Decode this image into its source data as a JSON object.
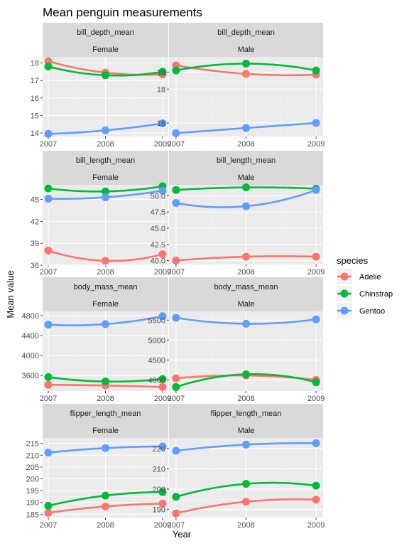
{
  "chart_data": {
    "type": "line",
    "title": "Mean penguin measurements",
    "xlabel": "Year",
    "ylabel": "Mean value",
    "legend": {
      "title": "species",
      "position": "right"
    },
    "series_colors": {
      "Adelie": "#F8766D",
      "Chinstrap": "#00BA38",
      "Gentoo": "#619CFF"
    },
    "series_names": [
      "Adelie",
      "Chinstrap",
      "Gentoo"
    ],
    "x": [
      2007,
      2008,
      2009
    ],
    "grid": true,
    "panels": [
      {
        "strip_top": "bill_depth_mean",
        "strip_bottom": "Female",
        "ylim": [
          13.8,
          18.35
        ],
        "yticks": [
          14,
          15,
          16,
          17,
          18
        ],
        "ytick_labels": [
          "14",
          "15",
          "16",
          "17",
          "18"
        ],
        "series": [
          {
            "name": "Adelie",
            "values": [
              18.1,
              17.45,
              17.35
            ]
          },
          {
            "name": "Chinstrap",
            "values": [
              17.8,
              17.3,
              17.5
            ]
          },
          {
            "name": "Gentoo",
            "values": [
              13.95,
              14.15,
              14.55
            ]
          }
        ]
      },
      {
        "strip_top": "bill_depth_mean",
        "strip_bottom": "Male",
        "ylim": [
          15.2,
          19.9
        ],
        "yticks": [
          16,
          18,
          19
        ],
        "ytick_labels": [
          "16",
          "18",
          "19"
        ],
        "series": [
          {
            "name": "Adelie",
            "values": [
              19.4,
              18.9,
              18.85
            ]
          },
          {
            "name": "Chinstrap",
            "values": [
              19.1,
              19.5,
              19.1
            ]
          },
          {
            "name": "Gentoo",
            "values": [
              15.4,
              15.7,
              16.0
            ]
          }
        ]
      },
      {
        "strip_top": "bill_length_mean",
        "strip_bottom": "Female",
        "ylim": [
          36.1,
          47.0
        ],
        "yticks": [
          36,
          39,
          42,
          45
        ],
        "ytick_labels": [
          "36",
          "39",
          "42",
          "45"
        ],
        "series": [
          {
            "name": "Adelie",
            "values": [
              38.0,
              36.6,
              37.5
            ]
          },
          {
            "name": "Chinstrap",
            "values": [
              46.5,
              46.1,
              46.8
            ]
          },
          {
            "name": "Gentoo",
            "values": [
              45.1,
              45.3,
              46.2
            ]
          }
        ]
      },
      {
        "strip_top": "bill_length_mean",
        "strip_bottom": "Male",
        "ylim": [
          39.4,
          51.7
        ],
        "yticks": [
          40.0,
          42.5,
          45.0,
          47.5,
          50.0
        ],
        "ytick_labels": [
          "40.0",
          "42.5",
          "45.0",
          "47.5",
          "50.0"
        ],
        "series": [
          {
            "name": "Adelie",
            "values": [
              40.0,
              40.6,
              40.6
            ]
          },
          {
            "name": "Chinstrap",
            "values": [
              50.9,
              51.3,
              51.1
            ]
          },
          {
            "name": "Gentoo",
            "values": [
              48.9,
              48.4,
              50.9
            ]
          }
        ]
      },
      {
        "strip_top": "body_mass_mean",
        "strip_bottom": "Female",
        "ylim": [
          3290,
          4885
        ],
        "yticks": [
          3600,
          4000,
          4400,
          4800
        ],
        "ytick_labels": [
          "3600",
          "4000",
          "4400",
          "4800"
        ],
        "series": [
          {
            "name": "Adelie",
            "values": [
              3415,
              3400,
              3370
            ]
          },
          {
            "name": "Chinstrap",
            "values": [
              3570,
              3480,
              3530
            ]
          },
          {
            "name": "Gentoo",
            "values": [
              4620,
              4630,
              4790
            ]
          }
        ]
      },
      {
        "strip_top": "body_mass_mean",
        "strip_bottom": "Male",
        "ylim": [
          3720,
          5720
        ],
        "yticks": [
          4000,
          4500,
          5000,
          5500
        ],
        "ytick_labels": [
          "4000",
          "4500",
          "5000",
          "5500"
        ],
        "series": [
          {
            "name": "Adelie",
            "values": [
              4040,
              4110,
              4000
            ]
          },
          {
            "name": "Chinstrap",
            "values": [
              3820,
              4140,
              3940
            ]
          },
          {
            "name": "Gentoo",
            "values": [
              5560,
              5410,
              5520
            ]
          }
        ]
      },
      {
        "strip_top": "flipper_length_mean",
        "strip_bottom": "Female",
        "ylim": [
          183.6,
          217.3
        ],
        "yticks": [
          185,
          190,
          195,
          200,
          205,
          210,
          215
        ],
        "ytick_labels": [
          "185",
          "190",
          "195",
          "200",
          "205",
          "210",
          "215"
        ],
        "series": [
          {
            "name": "Adelie",
            "values": [
              185.6,
              188.3,
              189.5
            ]
          },
          {
            "name": "Chinstrap",
            "values": [
              188.6,
              192.9,
              194.4
            ]
          },
          {
            "name": "Gentoo",
            "values": [
              211.1,
              213.0,
              213.7
            ]
          }
        ]
      },
      {
        "strip_top": "flipper_length_mean",
        "strip_bottom": "Male",
        "ylim": [
          186.0,
          225.2
        ],
        "yticks": [
          190,
          200,
          210,
          220
        ],
        "ytick_labels": [
          "190",
          "200",
          "210",
          "220"
        ],
        "series": [
          {
            "name": "Adelie",
            "values": [
              188.1,
              193.8,
              194.8
            ]
          },
          {
            "name": "Chinstrap",
            "values": [
              196.2,
              202.6,
              201.7
            ]
          },
          {
            "name": "Gentoo",
            "values": [
              218.9,
              221.9,
              222.6
            ]
          }
        ]
      }
    ]
  }
}
